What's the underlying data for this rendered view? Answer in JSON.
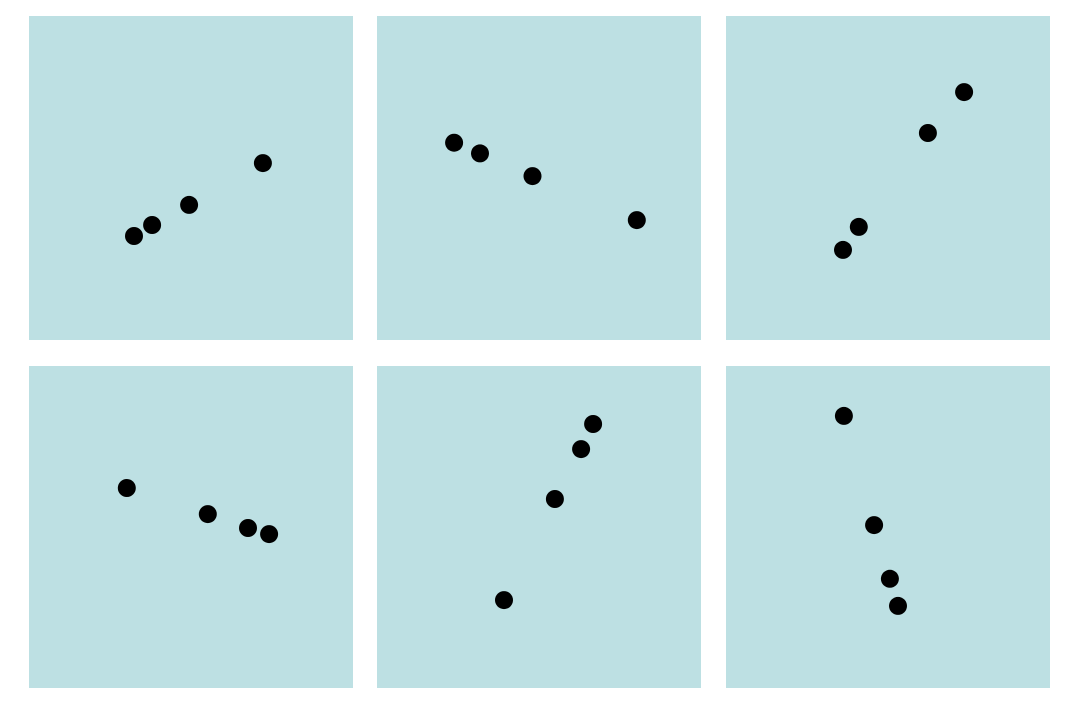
{
  "colors": {
    "background": "#ffffff",
    "panel_bg": "#bde0e3",
    "point": "#000000"
  },
  "chart_data": [
    {
      "type": "scatter",
      "xlim": [
        0,
        100
      ],
      "ylim": [
        0,
        100
      ],
      "grid": false,
      "x": [
        32.4,
        38.0,
        49.4,
        72.2
      ],
      "y": [
        32.1,
        35.5,
        41.7,
        54.6
      ]
    },
    {
      "type": "scatter",
      "xlim": [
        0,
        100
      ],
      "ylim": [
        0,
        100
      ],
      "grid": false,
      "x": [
        23.8,
        31.8,
        48.0,
        80.2
      ],
      "y": [
        60.9,
        57.6,
        50.6,
        37.0
      ]
    },
    {
      "type": "scatter",
      "xlim": [
        0,
        100
      ],
      "ylim": [
        0,
        100
      ],
      "grid": false,
      "x": [
        36.1,
        41.0,
        62.3,
        73.5
      ],
      "y": [
        27.8,
        34.9,
        63.9,
        76.5
      ]
    },
    {
      "type": "scatter",
      "xlim": [
        0,
        100
      ],
      "ylim": [
        0,
        100
      ],
      "grid": false,
      "x": [
        30.2,
        55.2,
        67.6,
        74.1
      ],
      "y": [
        62.1,
        54.0,
        49.7,
        47.8
      ]
    },
    {
      "type": "scatter",
      "xlim": [
        0,
        100
      ],
      "ylim": [
        0,
        100
      ],
      "grid": false,
      "x": [
        39.2,
        54.9,
        63.0,
        66.7
      ],
      "y": [
        27.3,
        58.7,
        74.2,
        82.0
      ]
    },
    {
      "type": "scatter",
      "xlim": [
        0,
        100
      ],
      "ylim": [
        0,
        100
      ],
      "grid": false,
      "x": [
        36.4,
        45.7,
        50.6,
        53.1
      ],
      "y": [
        84.5,
        50.6,
        33.9,
        25.5
      ]
    }
  ]
}
